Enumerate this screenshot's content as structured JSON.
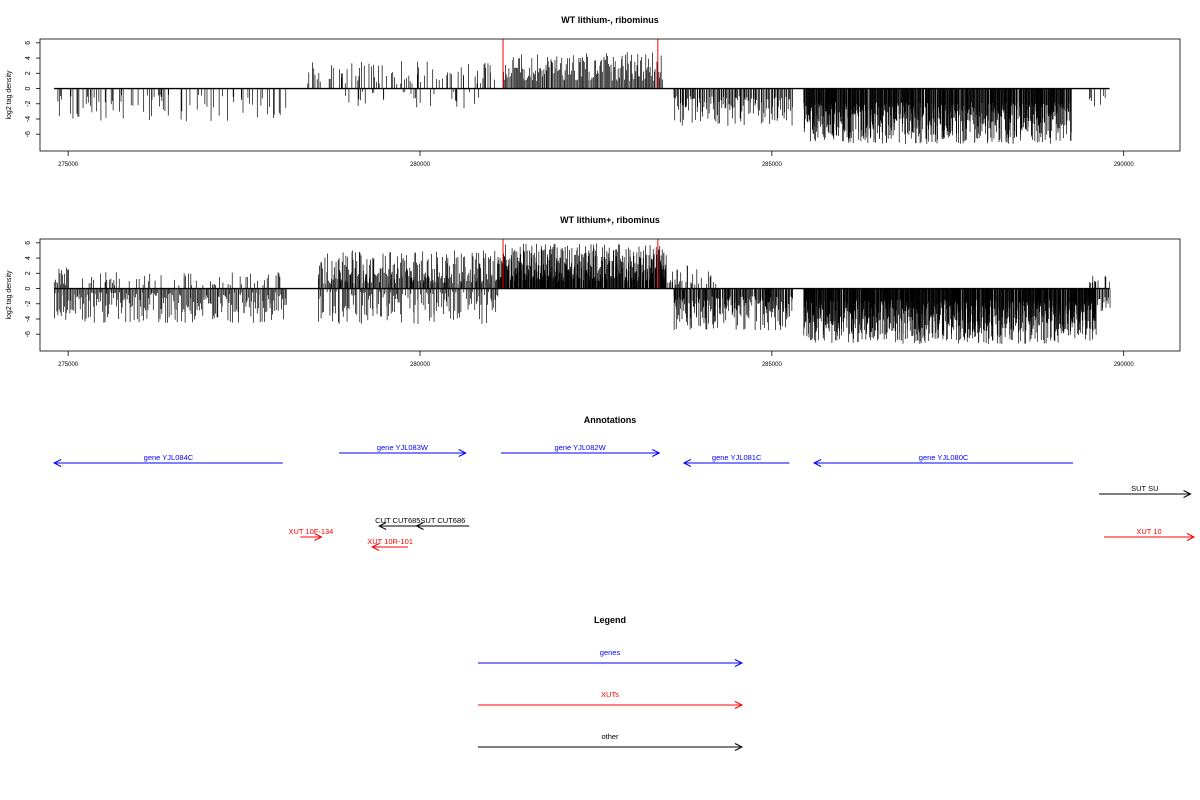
{
  "chart_data": [
    {
      "type": "bar",
      "title": "WT lithium-, ribominus",
      "xlabel": "",
      "ylabel": "log2 tag density",
      "xlim": [
        274600,
        290800
      ],
      "ylim": [
        -8.2,
        6.5
      ],
      "x_ticks": [
        275000,
        280000,
        285000,
        290000
      ],
      "y_ticks": [
        -6,
        -4,
        -2,
        0,
        2,
        4,
        6
      ],
      "baseline": {
        "x": [
          274800,
          289800
        ],
        "y": 0
      },
      "markers": {
        "x": [
          281180,
          283380
        ],
        "color": "#ff0000"
      },
      "regions": [
        {
          "x": [
            274850,
            278100
          ],
          "sign": -1,
          "density": 0.35,
          "min": 0.8,
          "max": 4.3,
          "seed": 11
        },
        {
          "x": [
            278400,
            281100
          ],
          "sign": 1,
          "density": 0.35,
          "min": 0.6,
          "max": 3.6,
          "seed": 12
        },
        {
          "x": [
            278900,
            281000
          ],
          "sign": -1,
          "density": 0.18,
          "min": 0.4,
          "max": 2.7,
          "seed": 13
        },
        {
          "x": [
            281180,
            283450
          ],
          "sign": 1,
          "density": 1.0,
          "min": 1.0,
          "max": 4.8,
          "seed": 14
        },
        {
          "x": [
            283600,
            285300
          ],
          "sign": -1,
          "density": 1.0,
          "min": 1.0,
          "max": 5.0,
          "seed": 15
        },
        {
          "x": [
            285450,
            289250
          ],
          "sign": -1,
          "density": 2.5,
          "min": 1.8,
          "max": 7.3,
          "seed": 16
        },
        {
          "x": [
            289500,
            289750
          ],
          "sign": -1,
          "density": 0.3,
          "min": 0.8,
          "max": 2.6,
          "seed": 17
        }
      ]
    },
    {
      "type": "bar",
      "title": "WT lithium+, ribominus",
      "xlabel": "",
      "ylabel": "log2 tag density",
      "xlim": [
        274600,
        290800
      ],
      "ylim": [
        -8.2,
        6.5
      ],
      "x_ticks": [
        275000,
        280000,
        285000,
        290000
      ],
      "y_ticks": [
        -6,
        -4,
        -2,
        0,
        2,
        4,
        6
      ],
      "baseline": {
        "x": [
          274800,
          289800
        ],
        "y": 0
      },
      "markers": {
        "x": [
          281180,
          283380
        ],
        "color": "#ff0000"
      },
      "regions": [
        {
          "x": [
            274800,
            275000
          ],
          "sign": 1,
          "density": 1.0,
          "min": 0.5,
          "max": 3.3,
          "seed": 21
        },
        {
          "x": [
            274800,
            278100
          ],
          "sign": -1,
          "density": 1.0,
          "min": 0.5,
          "max": 4.5,
          "seed": 22
        },
        {
          "x": [
            275200,
            278000
          ],
          "sign": 1,
          "density": 0.25,
          "min": 0.4,
          "max": 2.3,
          "seed": 23
        },
        {
          "x": [
            278550,
            281100
          ],
          "sign": 1,
          "density": 1.3,
          "min": 0.6,
          "max": 5.0,
          "seed": 24
        },
        {
          "x": [
            278550,
            281100
          ],
          "sign": -1,
          "density": 0.8,
          "min": 0.4,
          "max": 4.7,
          "seed": 25
        },
        {
          "x": [
            281100,
            283500
          ],
          "sign": 1,
          "density": 2.6,
          "min": 1.0,
          "max": 5.9,
          "seed": 26
        },
        {
          "x": [
            283400,
            284200
          ],
          "sign": 1,
          "density": 0.6,
          "min": 0.5,
          "max": 3.0,
          "seed": 27
        },
        {
          "x": [
            283600,
            285300
          ],
          "sign": -1,
          "density": 1.6,
          "min": 1.0,
          "max": 5.5,
          "seed": 28
        },
        {
          "x": [
            285450,
            289600
          ],
          "sign": -1,
          "density": 3.0,
          "min": 1.5,
          "max": 7.3,
          "seed": 29
        },
        {
          "x": [
            289500,
            289800
          ],
          "sign": 1,
          "density": 0.5,
          "min": 0.5,
          "max": 1.8,
          "seed": 30
        },
        {
          "x": [
            289500,
            289800
          ],
          "sign": -1,
          "density": 1.0,
          "min": 1.0,
          "max": 3.5,
          "seed": 31
        }
      ]
    }
  ],
  "annotations": {
    "title": "Annotations",
    "xlim": [
      274600,
      290800
    ],
    "items": [
      {
        "label": "gene YJL084C",
        "x_start": 278050,
        "x_end": 274800,
        "row": 1,
        "color": "#0000ff"
      },
      {
        "label": "gene YJL083W",
        "x_start": 278850,
        "x_end": 280650,
        "row": 0,
        "color": "#0000ff"
      },
      {
        "label": "gene YJL082W",
        "x_start": 281150,
        "x_end": 283400,
        "row": 0,
        "color": "#0000ff"
      },
      {
        "label": "gene YJL081C",
        "x_start": 285250,
        "x_end": 283750,
        "row": 1,
        "color": "#0000ff"
      },
      {
        "label": "gene YJL080C",
        "x_start": 289280,
        "x_end": 285600,
        "row": 1,
        "color": "#0000ff"
      },
      {
        "label": "SUT SU",
        "x_start": 289650,
        "x_end": 290950,
        "row": 2,
        "color": "#000000"
      },
      {
        "label": "CUT CUT685",
        "x_start": 279950,
        "x_end": 279420,
        "row": 3,
        "color": "#000000"
      },
      {
        "label": "SUT CUT686",
        "x_start": 280700,
        "x_end": 279950,
        "row": 3,
        "color": "#000000"
      },
      {
        "label": "XUT 10F-134",
        "x_start": 278300,
        "x_end": 278600,
        "row": 4,
        "color": "#ff0000"
      },
      {
        "label": "XUT 10R-101",
        "x_start": 279830,
        "x_end": 279320,
        "row": 5,
        "color": "#ff0000"
      },
      {
        "label": "XUT 10",
        "x_start": 289720,
        "x_end": 291000,
        "row": 4,
        "color": "#ff0000"
      }
    ]
  },
  "legend": {
    "title": "Legend",
    "items": [
      {
        "label": "genes",
        "color": "#0000ff"
      },
      {
        "label": "XUTs",
        "color": "#ff0000"
      },
      {
        "label": "other",
        "color": "#000000"
      }
    ]
  }
}
